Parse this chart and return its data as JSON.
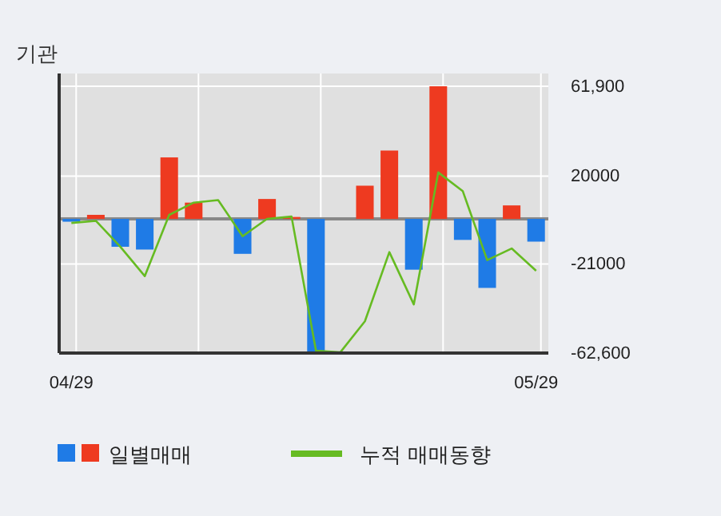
{
  "chart_data": {
    "type": "bar",
    "title": "기관",
    "categories": [
      "04/29",
      null,
      null,
      null,
      null,
      null,
      null,
      null,
      null,
      null,
      null,
      null,
      null,
      null,
      null,
      null,
      null,
      null,
      null,
      "05/29"
    ],
    "series": [
      {
        "name": "일별매매",
        "colors": [
          "#1f7be6",
          "#ee3a20",
          "#1f7be6",
          "#1f7be6",
          "#ee3a20",
          "#ee3a20",
          "#ee3a20",
          "#1f7be6",
          "#ee3a20",
          "#ee3a20",
          "#1f7be6",
          "#ee3a20",
          "#ee3a20",
          "#ee3a20",
          "#1f7be6",
          "#ee3a20",
          "#1f7be6",
          "#1f7be6",
          "#ee3a20",
          "#1f7be6"
        ],
        "values": [
          -1300,
          1900,
          -13000,
          -14300,
          28700,
          7600,
          0,
          -16300,
          9300,
          900,
          -62600,
          0,
          15500,
          31900,
          -23700,
          61900,
          -9800,
          -32200,
          6300,
          -10600
        ]
      },
      {
        "name": "누적 매매동향",
        "type": "line",
        "color": "#66bb22",
        "values": [
          -1900,
          -900,
          -13000,
          -26700,
          1900,
          7600,
          8800,
          -8100,
          0,
          1100,
          -61500,
          -62200,
          -47800,
          -15500,
          -39900,
          21700,
          13000,
          -19200,
          -13800,
          -24200
        ]
      }
    ],
    "ylim": [
      -62600,
      61900
    ],
    "yticks": [
      {
        "value": 61900,
        "label": "61,900"
      },
      20000,
      -21000,
      {
        "value": -62600,
        "label": "-62,600"
      }
    ],
    "ref_lines": [
      {
        "axis": "y",
        "value": 0,
        "color": "#888888"
      }
    ],
    "grid": true,
    "legend": "bottom",
    "line_style": "solid",
    "marker": "none"
  }
}
